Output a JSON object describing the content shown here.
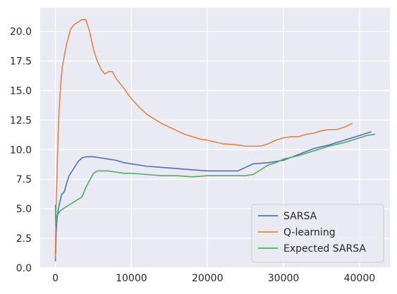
{
  "chart_data": {
    "type": "line",
    "title": "",
    "xlabel": "",
    "ylabel": "",
    "xlim": [
      -2000,
      44000
    ],
    "ylim": [
      0,
      22
    ],
    "grid": true,
    "legend_location": "lower-right",
    "x_ticks": [
      0,
      10000,
      20000,
      30000,
      40000
    ],
    "y_ticks": [
      0.0,
      2.5,
      5.0,
      7.5,
      10.0,
      12.5,
      15.0,
      17.5,
      20.0
    ],
    "x_tick_labels": [
      "0",
      "10000",
      "20000",
      "30000",
      "40000"
    ],
    "y_tick_labels": [
      "0.0",
      "2.5",
      "5.0",
      "7.5",
      "10.0",
      "12.5",
      "15.0",
      "17.5",
      "20.0"
    ],
    "series": [
      {
        "name": "SARSA",
        "color": "#4c72b0",
        "points": [
          [
            0,
            0.6
          ],
          [
            20,
            1.5
          ],
          [
            40,
            1.2
          ],
          [
            70,
            2.2
          ],
          [
            100,
            3.0
          ],
          [
            200,
            4.0
          ],
          [
            300,
            4.6
          ],
          [
            400,
            5.0
          ],
          [
            600,
            5.6
          ],
          [
            800,
            6.2
          ],
          [
            1000,
            6.3
          ],
          [
            1200,
            6.5
          ],
          [
            1500,
            7.2
          ],
          [
            1800,
            7.8
          ],
          [
            2000,
            8.0
          ],
          [
            2500,
            8.5
          ],
          [
            3000,
            9.0
          ],
          [
            3500,
            9.3
          ],
          [
            4000,
            9.4
          ],
          [
            5000,
            9.4
          ],
          [
            6000,
            9.3
          ],
          [
            7000,
            9.2
          ],
          [
            8000,
            9.1
          ],
          [
            9000,
            8.9
          ],
          [
            10000,
            8.8
          ],
          [
            12000,
            8.6
          ],
          [
            14000,
            8.5
          ],
          [
            16000,
            8.4
          ],
          [
            18000,
            8.3
          ],
          [
            20000,
            8.2
          ],
          [
            22000,
            8.2
          ],
          [
            24000,
            8.2
          ],
          [
            25000,
            8.5
          ],
          [
            26000,
            8.8
          ],
          [
            28000,
            8.9
          ],
          [
            29000,
            9.0
          ],
          [
            30000,
            9.1
          ],
          [
            32000,
            9.6
          ],
          [
            34000,
            10.1
          ],
          [
            36000,
            10.4
          ],
          [
            38000,
            10.8
          ],
          [
            40000,
            11.2
          ],
          [
            41500,
            11.5
          ]
        ]
      },
      {
        "name": "Q-learning",
        "color": "#dd8452",
        "points": [
          [
            0,
            0.8
          ],
          [
            20,
            2.0
          ],
          [
            50,
            4.0
          ],
          [
            100,
            5.5
          ],
          [
            200,
            7.5
          ],
          [
            300,
            10.0
          ],
          [
            400,
            12.0
          ],
          [
            500,
            13.5
          ],
          [
            700,
            15.5
          ],
          [
            900,
            17.0
          ],
          [
            1200,
            18.0
          ],
          [
            1500,
            19.0
          ],
          [
            2000,
            20.2
          ],
          [
            2500,
            20.6
          ],
          [
            3000,
            20.8
          ],
          [
            3500,
            21.0
          ],
          [
            4000,
            21.0
          ],
          [
            4500,
            20.0
          ],
          [
            5000,
            18.5
          ],
          [
            5500,
            17.5
          ],
          [
            6000,
            16.8
          ],
          [
            6500,
            16.4
          ],
          [
            7000,
            16.6
          ],
          [
            7500,
            16.6
          ],
          [
            8000,
            16.0
          ],
          [
            9000,
            15.2
          ],
          [
            10000,
            14.3
          ],
          [
            11000,
            13.6
          ],
          [
            12000,
            13.0
          ],
          [
            13000,
            12.6
          ],
          [
            14000,
            12.2
          ],
          [
            15000,
            11.9
          ],
          [
            16000,
            11.6
          ],
          [
            17000,
            11.3
          ],
          [
            18000,
            11.1
          ],
          [
            19000,
            10.9
          ],
          [
            20000,
            10.8
          ],
          [
            22000,
            10.5
          ],
          [
            24000,
            10.4
          ],
          [
            25000,
            10.3
          ],
          [
            26000,
            10.3
          ],
          [
            27000,
            10.3
          ],
          [
            28000,
            10.5
          ],
          [
            29000,
            10.8
          ],
          [
            30000,
            11.0
          ],
          [
            31000,
            11.1
          ],
          [
            32000,
            11.1
          ],
          [
            33000,
            11.3
          ],
          [
            34000,
            11.4
          ],
          [
            35000,
            11.6
          ],
          [
            36000,
            11.7
          ],
          [
            37000,
            11.7
          ],
          [
            38000,
            11.9
          ],
          [
            39000,
            12.2
          ]
        ]
      },
      {
        "name": "Expected SARSA",
        "color": "#55a868",
        "points": [
          [
            0,
            5.3
          ],
          [
            30,
            4.2
          ],
          [
            60,
            3.5
          ],
          [
            100,
            4.0
          ],
          [
            200,
            4.4
          ],
          [
            400,
            4.6
          ],
          [
            600,
            4.8
          ],
          [
            1000,
            5.0
          ],
          [
            1500,
            5.2
          ],
          [
            2000,
            5.4
          ],
          [
            2500,
            5.6
          ],
          [
            3000,
            5.8
          ],
          [
            3500,
            6.0
          ],
          [
            4000,
            6.8
          ],
          [
            4500,
            7.4
          ],
          [
            5000,
            8.0
          ],
          [
            5500,
            8.2
          ],
          [
            6000,
            8.2
          ],
          [
            7000,
            8.2
          ],
          [
            8000,
            8.1
          ],
          [
            9000,
            8.0
          ],
          [
            10000,
            8.0
          ],
          [
            12000,
            7.9
          ],
          [
            14000,
            7.8
          ],
          [
            16000,
            7.8
          ],
          [
            18000,
            7.7
          ],
          [
            20000,
            7.8
          ],
          [
            22000,
            7.8
          ],
          [
            24000,
            7.8
          ],
          [
            25000,
            7.8
          ],
          [
            26000,
            7.9
          ],
          [
            27000,
            8.3
          ],
          [
            28000,
            8.7
          ],
          [
            29000,
            8.9
          ],
          [
            30000,
            9.2
          ],
          [
            32000,
            9.5
          ],
          [
            34000,
            9.9
          ],
          [
            36000,
            10.3
          ],
          [
            38000,
            10.6
          ],
          [
            40000,
            11.0
          ],
          [
            41000,
            11.2
          ],
          [
            42000,
            11.3
          ]
        ]
      }
    ]
  }
}
